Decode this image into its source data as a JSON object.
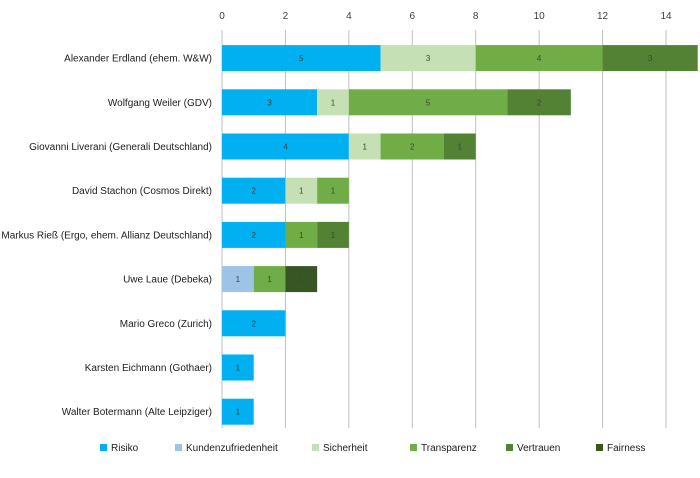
{
  "chart_data": {
    "type": "bar",
    "orientation": "horizontal",
    "stacked": true,
    "title": "",
    "xlabel": "",
    "ylabel": "",
    "xlim": [
      0,
      14
    ],
    "xticks": [
      0,
      2,
      4,
      6,
      8,
      10,
      12,
      14
    ],
    "grid": true,
    "legend_position": "bottom",
    "categories": [
      "Alexander Erdland (ehem. W&W)",
      "Wolfgang Weiler (GDV)",
      "Giovanni Liverani (Generali Deutschland)",
      "David Stachon (Cosmos Direkt)",
      "Markus Rieß (Ergo, ehem. Allianz Deutschland)",
      "Uwe Laue (Debeka)",
      "Mario Greco (Zurich)",
      "Karsten Eichmann (Gothaer)",
      "Walter Botermann (Alte Leipziger)"
    ],
    "series": [
      {
        "name": "Risiko",
        "color": "#00b0f0",
        "values": [
          5,
          3,
          4,
          2,
          2,
          0,
          2,
          1,
          1
        ]
      },
      {
        "name": "Kundenzufriedenheit",
        "color": "#9dc3e6",
        "values": [
          0,
          0,
          0,
          0,
          0,
          1,
          0,
          0,
          0
        ]
      },
      {
        "name": "Sicherheit",
        "color": "#c5e0b4",
        "values": [
          3,
          1,
          1,
          1,
          0,
          0,
          0,
          0,
          0
        ]
      },
      {
        "name": "Transparenz",
        "color": "#70ad47",
        "values": [
          4,
          5,
          2,
          1,
          1,
          1,
          0,
          0,
          0
        ]
      },
      {
        "name": "Vertrauen",
        "color": "#548235",
        "values": [
          3,
          2,
          1,
          0,
          1,
          0,
          0,
          0,
          0
        ]
      },
      {
        "name": "Fairness",
        "color": "#375623",
        "values": [
          0,
          0,
          0,
          0,
          0,
          1,
          0,
          0,
          0
        ]
      }
    ]
  }
}
